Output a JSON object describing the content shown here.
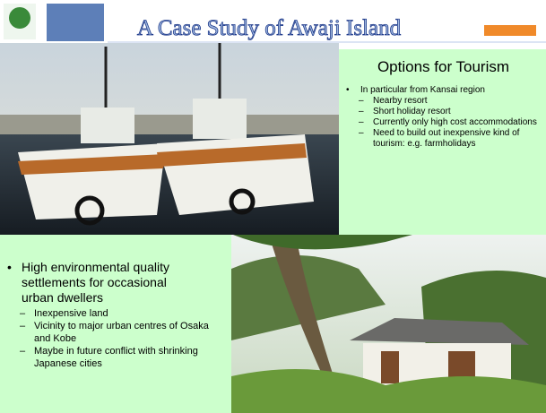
{
  "header": {
    "title": "A Case Study of Awaji Island"
  },
  "tourism": {
    "heading": "Options for Tourism",
    "bullet": "In particular from Kansai region",
    "items": [
      "Nearby resort",
      "Short holiday resort",
      "Currently only high cost accommodations",
      "Need to build out inexpensive kind of tourism: e.g. farmholidays"
    ]
  },
  "settlement": {
    "bullet": "High environmental quality settlements for occasional urban dwellers",
    "items": [
      "Inexpensive land",
      "Vicinity to major urban centres of Osaka and Kobe",
      "Maybe in future conflict with shrinking Japanese cities"
    ]
  }
}
